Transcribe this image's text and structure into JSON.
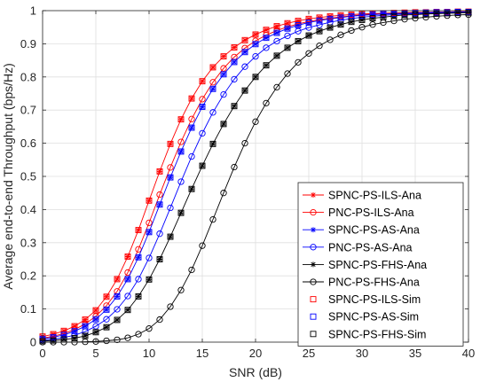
{
  "chart_data": {
    "type": "line",
    "title": "",
    "xlabel": "SNR (dB)",
    "ylabel": "Average end-to-end Throughput (bps/Hz)",
    "xlim": [
      0,
      40
    ],
    "ylim": [
      0,
      1
    ],
    "xticks": [
      0,
      5,
      10,
      15,
      20,
      25,
      30,
      35,
      40
    ],
    "yticks": [
      0,
      0.1,
      0.2,
      0.3,
      0.4,
      0.5,
      0.6,
      0.7,
      0.8,
      0.9,
      1
    ],
    "grid": true,
    "legend_position": "lower-right",
    "x": [
      0,
      1,
      2,
      3,
      4,
      5,
      6,
      7,
      8,
      9,
      10,
      11,
      12,
      13,
      14,
      15,
      16,
      17,
      18,
      19,
      20,
      21,
      22,
      23,
      24,
      25,
      26,
      27,
      28,
      29,
      30,
      31,
      32,
      33,
      34,
      35,
      36,
      37,
      38,
      39,
      40
    ],
    "series": [
      {
        "name": "SPNC-PS-ILS-Ana",
        "color": "#ff0000",
        "marker": "asterisk",
        "line": true,
        "values": [
          0.017,
          0.024,
          0.034,
          0.048,
          0.068,
          0.096,
          0.137,
          0.19,
          0.258,
          0.338,
          0.427,
          0.515,
          0.598,
          0.672,
          0.735,
          0.787,
          0.829,
          0.862,
          0.889,
          0.911,
          0.928,
          0.942,
          0.953,
          0.962,
          0.969,
          0.975,
          0.979,
          0.983,
          0.986,
          0.988,
          0.99,
          0.991,
          0.992,
          0.993,
          0.994,
          0.995,
          0.995,
          0.996,
          0.996,
          0.997,
          0.997
        ]
      },
      {
        "name": "PNC-PS-ILS-Ana",
        "color": "#ff0000",
        "marker": "circle",
        "line": true,
        "values": [
          0.012,
          0.018,
          0.026,
          0.038,
          0.055,
          0.078,
          0.11,
          0.153,
          0.21,
          0.28,
          0.36,
          0.445,
          0.527,
          0.604,
          0.673,
          0.733,
          0.784,
          0.826,
          0.86,
          0.887,
          0.909,
          0.926,
          0.94,
          0.951,
          0.96,
          0.967,
          0.973,
          0.977,
          0.981,
          0.984,
          0.987,
          0.989,
          0.99,
          0.991,
          0.992,
          0.993,
          0.994,
          0.994,
          0.995,
          0.995,
          0.996
        ]
      },
      {
        "name": "SPNC-PS-AS-Ana",
        "color": "#0000ff",
        "marker": "asterisk",
        "line": true,
        "values": [
          0.01,
          0.015,
          0.022,
          0.033,
          0.048,
          0.069,
          0.098,
          0.138,
          0.19,
          0.256,
          0.332,
          0.415,
          0.497,
          0.575,
          0.647,
          0.71,
          0.764,
          0.808,
          0.845,
          0.875,
          0.899,
          0.918,
          0.933,
          0.946,
          0.956,
          0.964,
          0.97,
          0.975,
          0.979,
          0.983,
          0.986,
          0.988,
          0.99,
          0.991,
          0.992,
          0.993,
          0.994,
          0.995,
          0.995,
          0.996,
          0.996
        ]
      },
      {
        "name": "PNC-PS-AS-Ana",
        "color": "#0000ff",
        "marker": "circle",
        "line": true,
        "values": [
          0.006,
          0.009,
          0.014,
          0.021,
          0.032,
          0.048,
          0.069,
          0.099,
          0.139,
          0.19,
          0.254,
          0.327,
          0.405,
          0.484,
          0.56,
          0.63,
          0.693,
          0.747,
          0.793,
          0.831,
          0.862,
          0.888,
          0.908,
          0.924,
          0.938,
          0.949,
          0.957,
          0.965,
          0.971,
          0.976,
          0.98,
          0.983,
          0.986,
          0.988,
          0.99,
          0.991,
          0.992,
          0.993,
          0.994,
          0.995,
          0.995
        ]
      },
      {
        "name": "SPNC-PS-FHS-Ana",
        "color": "#000000",
        "marker": "asterisk",
        "line": true,
        "values": [
          0.003,
          0.005,
          0.008,
          0.012,
          0.019,
          0.03,
          0.045,
          0.067,
          0.097,
          0.138,
          0.189,
          0.25,
          0.318,
          0.39,
          0.462,
          0.532,
          0.598,
          0.658,
          0.712,
          0.759,
          0.8,
          0.835,
          0.864,
          0.888,
          0.908,
          0.925,
          0.938,
          0.949,
          0.958,
          0.966,
          0.972,
          0.977,
          0.98,
          0.984,
          0.987,
          0.988,
          0.99,
          0.991,
          0.992,
          0.993,
          0.994
        ]
      },
      {
        "name": "PNC-PS-FHS-Ana",
        "color": "#000000",
        "marker": "circle",
        "line": true,
        "values": [
          0.0,
          0.0,
          0.0,
          0.0,
          0.001,
          0.002,
          0.004,
          0.007,
          0.013,
          0.024,
          0.041,
          0.068,
          0.107,
          0.157,
          0.218,
          0.291,
          0.37,
          0.45,
          0.528,
          0.6,
          0.665,
          0.721,
          0.769,
          0.81,
          0.844,
          0.871,
          0.894,
          0.912,
          0.927,
          0.94,
          0.95,
          0.958,
          0.964,
          0.969,
          0.974,
          0.977,
          0.98,
          0.983,
          0.985,
          0.987,
          0.988
        ]
      },
      {
        "name": "SPNC-PS-ILS-Sim",
        "color": "#ff0000",
        "marker": "square",
        "line": false,
        "values": [
          0.017,
          0.024,
          0.034,
          0.048,
          0.068,
          0.096,
          0.137,
          0.19,
          0.258,
          0.338,
          0.427,
          0.515,
          0.598,
          0.672,
          0.735,
          0.787,
          0.829,
          0.862,
          0.889,
          0.911,
          0.928,
          0.942,
          0.953,
          0.962,
          0.969,
          0.975,
          0.979,
          0.983,
          0.986,
          0.988,
          0.99,
          0.991,
          0.992,
          0.993,
          0.994,
          0.995,
          0.995,
          0.996,
          0.996,
          0.997,
          0.997
        ]
      },
      {
        "name": "SPNC-PS-AS-Sim",
        "color": "#0000ff",
        "marker": "square",
        "line": false,
        "values": [
          0.01,
          0.015,
          0.022,
          0.033,
          0.048,
          0.069,
          0.098,
          0.138,
          0.19,
          0.256,
          0.332,
          0.415,
          0.497,
          0.575,
          0.647,
          0.71,
          0.764,
          0.808,
          0.845,
          0.875,
          0.899,
          0.918,
          0.933,
          0.946,
          0.956,
          0.964,
          0.97,
          0.975,
          0.979,
          0.983,
          0.986,
          0.988,
          0.99,
          0.991,
          0.992,
          0.993,
          0.994,
          0.995,
          0.995,
          0.996,
          0.996
        ]
      },
      {
        "name": "SPNC-PS-FHS-Sim",
        "color": "#000000",
        "marker": "square",
        "line": false,
        "values": [
          0.003,
          0.005,
          0.008,
          0.012,
          0.019,
          0.03,
          0.045,
          0.067,
          0.097,
          0.138,
          0.189,
          0.25,
          0.318,
          0.39,
          0.462,
          0.532,
          0.598,
          0.658,
          0.712,
          0.759,
          0.8,
          0.835,
          0.864,
          0.888,
          0.908,
          0.925,
          0.938,
          0.949,
          0.958,
          0.966,
          0.972,
          0.977,
          0.98,
          0.984,
          0.987,
          0.988,
          0.99,
          0.991,
          0.992,
          0.993,
          0.994
        ]
      }
    ]
  }
}
